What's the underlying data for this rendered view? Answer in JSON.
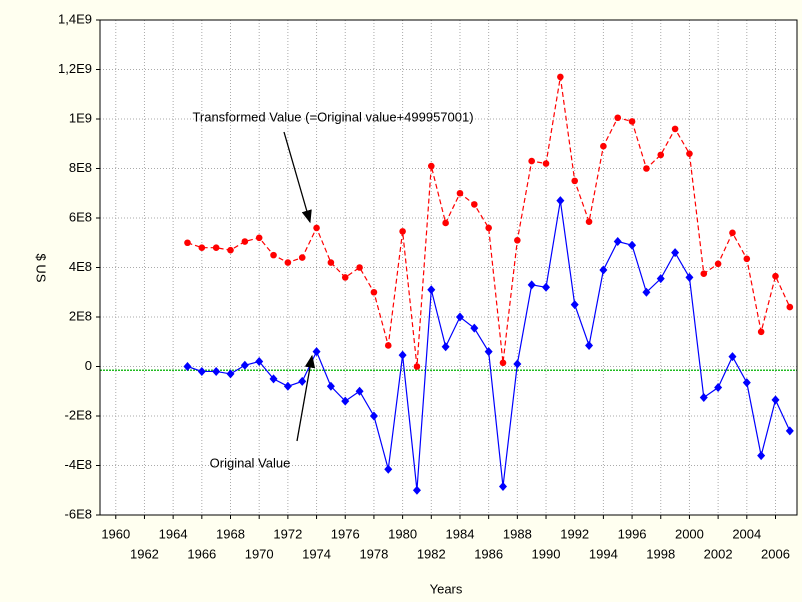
{
  "chart_data": {
    "type": "line",
    "x_label": "Years",
    "y_label": "$ US",
    "x": [
      1965,
      1966,
      1967,
      1968,
      1969,
      1970,
      1971,
      1972,
      1973,
      1974,
      1975,
      1976,
      1977,
      1978,
      1979,
      1980,
      1981,
      1982,
      1983,
      1984,
      1985,
      1986,
      1987,
      1988,
      1989,
      1990,
      1991,
      1992,
      1993,
      1994,
      1995,
      1996,
      1997,
      1998,
      1999,
      2000,
      2001,
      2002,
      2003,
      2004,
      2005,
      2006,
      2007
    ],
    "series": [
      {
        "name": "Transformed Value",
        "color": "#ff0000",
        "dash": true,
        "marker": "circle",
        "values": [
          500000000,
          480000000,
          480000000,
          470000000,
          505000000,
          520000000,
          450000000,
          420000000,
          440000000,
          560000000,
          420000000,
          360000000,
          400000000,
          300000000,
          85000000,
          546000000,
          0,
          810000000,
          580000000,
          700000000,
          655000000,
          560000000,
          15000000,
          510000000,
          830000000,
          820000000,
          1170000000,
          750000000,
          585000000,
          890000000,
          1005000000,
          990000000,
          800000000,
          855000000,
          960000000,
          860000000,
          375000000,
          415000000,
          540000000,
          435000000,
          140000000,
          365000000,
          240000000
        ]
      },
      {
        "name": "Original Value",
        "color": "#0000ff",
        "dash": false,
        "marker": "diamond",
        "values": [
          0,
          -20000000,
          -20000000,
          -30000000,
          5000000,
          20000000,
          -50000000,
          -80000000,
          -60000000,
          60000000,
          -80000000,
          -140000000,
          -100000000,
          -200000000,
          -415000000,
          46000000,
          -500000000,
          310000000,
          80000000,
          200000000,
          155000000,
          60000000,
          -485000000,
          10000000,
          330000000,
          320000000,
          670000000,
          250000000,
          85000000,
          390000000,
          505000000,
          490000000,
          300000000,
          355000000,
          460000000,
          360000000,
          -125000000,
          -85000000,
          40000000,
          -65000000,
          -360000000,
          -135000000,
          -260000000
        ]
      }
    ],
    "annotations": [
      "Transformed Value (=Original value+499957001)",
      "Original Value"
    ],
    "hline": {
      "value": -15000000,
      "color": "#22bb22"
    },
    "xlim": [
      1958.9,
      2007.5
    ],
    "xticks": [
      1960,
      1962,
      1964,
      1966,
      1968,
      1970,
      1972,
      1974,
      1976,
      1978,
      1980,
      1982,
      1984,
      1986,
      1988,
      1990,
      1992,
      1994,
      1996,
      1998,
      2000,
      2002,
      2004,
      2006
    ],
    "ylim": [
      -600000000,
      1400000000
    ],
    "yticks": [
      {
        "value": -600000000,
        "label": "-6E8"
      },
      {
        "value": -400000000,
        "label": "-4E8"
      },
      {
        "value": -200000000,
        "label": "-2E8"
      },
      0,
      {
        "value": 200000000,
        "label": "2E8"
      },
      {
        "value": 400000000,
        "label": "4E8"
      },
      {
        "value": 600000000,
        "label": "6E8"
      },
      {
        "value": 800000000,
        "label": "8E8"
      },
      {
        "value": 1000000000,
        "label": "1E9"
      },
      {
        "value": 1200000000,
        "label": "1,2E9"
      },
      {
        "value": 1400000000,
        "label": "1,4E9"
      }
    ],
    "grid": true
  }
}
